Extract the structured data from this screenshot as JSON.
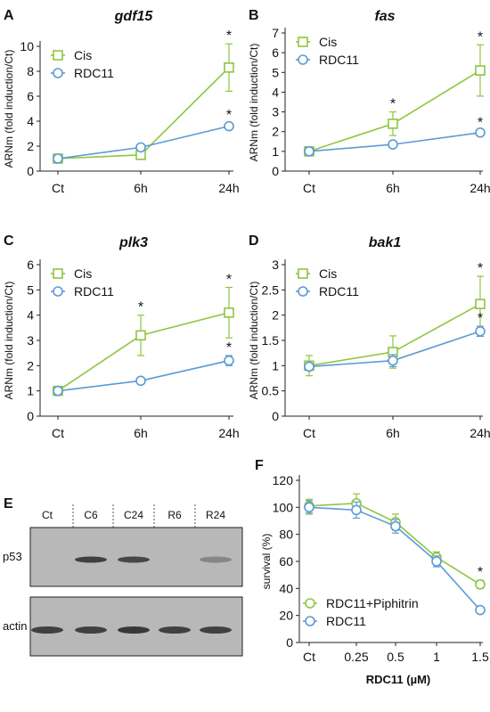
{
  "colors": {
    "cis": "#8dc63f",
    "rdc": "#5b9bd5",
    "axis": "#222222",
    "text": "#111111",
    "blot_bg": "#b8b8b8",
    "band": "#2a2a2a"
  },
  "star": "*",
  "panels": {
    "A": {
      "letter": "A",
      "title": "gdf15",
      "ylabel": "ARNm (fold induction/Ct)"
    },
    "B": {
      "letter": "B",
      "title": "fas",
      "ylabel": "ARNm (fold induction/Ct)"
    },
    "C": {
      "letter": "C",
      "title": "plk3",
      "ylabel": "ARNm (fold induction/Ct)"
    },
    "D": {
      "letter": "D",
      "title": "bak1",
      "ylabel": "ARNm (fold induction/Ct)"
    },
    "E": {
      "letter": "E"
    },
    "F": {
      "letter": "F",
      "ylabel": "survival (%)",
      "xlabel": "RDC11 (µM)"
    }
  },
  "blot": {
    "lanes": [
      "Ct",
      "C6",
      "C24",
      "R6",
      "R24"
    ],
    "rows": [
      "p53",
      "actin"
    ],
    "p53_intensity": [
      0.0,
      0.85,
      0.8,
      0.0,
      0.35
    ],
    "actin_intensity": [
      0.85,
      0.85,
      0.9,
      0.85,
      0.85
    ]
  },
  "chart_data": [
    {
      "id": "A",
      "type": "line",
      "title": "gdf15",
      "categories": [
        "Ct",
        "6h",
        "24h"
      ],
      "ylabel": "ARNm (fold induction/Ct)",
      "ylim": [
        0,
        10
      ],
      "yticks": [
        "0",
        "2",
        "4",
        "6",
        "8",
        "10"
      ],
      "legend": "top-left",
      "series": [
        {
          "name": "Cis",
          "marker": "square",
          "values": [
            1.0,
            1.3,
            8.3
          ],
          "err": [
            0.1,
            0.3,
            1.9
          ],
          "stars": [
            false,
            false,
            true
          ]
        },
        {
          "name": "RDC11",
          "marker": "circle",
          "values": [
            1.0,
            1.9,
            3.6
          ],
          "err": [
            0.1,
            0.2,
            0.25
          ],
          "stars": [
            false,
            false,
            true
          ]
        }
      ]
    },
    {
      "id": "B",
      "type": "line",
      "title": "fas",
      "categories": [
        "Ct",
        "6h",
        "24h"
      ],
      "ylabel": "ARNm (fold induction/Ct)",
      "ylim": [
        0,
        7
      ],
      "yticks": [
        "0",
        "1",
        "2",
        "3",
        "4",
        "5",
        "6",
        "7"
      ],
      "legend": "top-left",
      "series": [
        {
          "name": "Cis",
          "marker": "square",
          "values": [
            1.0,
            2.4,
            5.1
          ],
          "err": [
            0.1,
            0.6,
            1.3
          ],
          "stars": [
            false,
            true,
            true
          ]
        },
        {
          "name": "RDC11",
          "marker": "circle",
          "values": [
            1.0,
            1.35,
            1.95
          ],
          "err": [
            0.1,
            0.1,
            0.1
          ],
          "stars": [
            false,
            false,
            true
          ]
        }
      ]
    },
    {
      "id": "C",
      "type": "line",
      "title": "plk3",
      "categories": [
        "Ct",
        "6h",
        "24h"
      ],
      "ylabel": "ARNm (fold induction/Ct)",
      "ylim": [
        0,
        6
      ],
      "yticks": [
        "0",
        "1",
        "2",
        "3",
        "4",
        "5",
        "6"
      ],
      "legend": "top-left",
      "series": [
        {
          "name": "Cis",
          "marker": "square",
          "values": [
            1.0,
            3.2,
            4.1
          ],
          "err": [
            0.1,
            0.8,
            1.0
          ],
          "stars": [
            false,
            true,
            true
          ]
        },
        {
          "name": "RDC11",
          "marker": "circle",
          "values": [
            1.0,
            1.4,
            2.2
          ],
          "err": [
            0.1,
            0.1,
            0.2
          ],
          "stars": [
            false,
            false,
            true
          ]
        }
      ]
    },
    {
      "id": "D",
      "type": "line",
      "title": "bak1",
      "categories": [
        "Ct",
        "6h",
        "24h"
      ],
      "ylabel": "ARNm (fold induction/Ct)",
      "ylim": [
        0,
        3
      ],
      "yticks": [
        "0",
        "0.5",
        "1",
        "1.5",
        "2",
        "2.5",
        "3"
      ],
      "legend": "top-left",
      "series": [
        {
          "name": "Cis",
          "marker": "square",
          "values": [
            1.0,
            1.27,
            2.22
          ],
          "err": [
            0.2,
            0.32,
            0.55
          ],
          "stars": [
            false,
            false,
            true
          ]
        },
        {
          "name": "RDC11",
          "marker": "circle",
          "values": [
            0.98,
            1.1,
            1.68
          ],
          "err": [
            0.05,
            0.12,
            0.1
          ],
          "stars": [
            false,
            false,
            true
          ]
        }
      ]
    },
    {
      "id": "F",
      "type": "line",
      "categories": [
        "Ct",
        "0.25",
        "0.5",
        "1",
        "1.5"
      ],
      "xlabel": "RDC11 (µM)",
      "ylabel": "survival (%)",
      "ylim": [
        0,
        120
      ],
      "yticks": [
        "0",
        "20",
        "40",
        "60",
        "80",
        "100",
        "120"
      ],
      "legend": "bottom-left",
      "series": [
        {
          "name": "RDC11+Piphitrin",
          "marker": "circle",
          "values": [
            101,
            103,
            89,
            63,
            43
          ],
          "err": [
            5,
            7,
            6,
            4,
            3
          ],
          "stars": [
            false,
            false,
            false,
            false,
            true
          ]
        },
        {
          "name": "RDC11",
          "marker": "circle",
          "values": [
            100,
            98,
            86,
            60,
            24
          ],
          "err": [
            5,
            6,
            5,
            4,
            2
          ],
          "stars": [
            false,
            false,
            false,
            false,
            false
          ]
        }
      ]
    }
  ]
}
